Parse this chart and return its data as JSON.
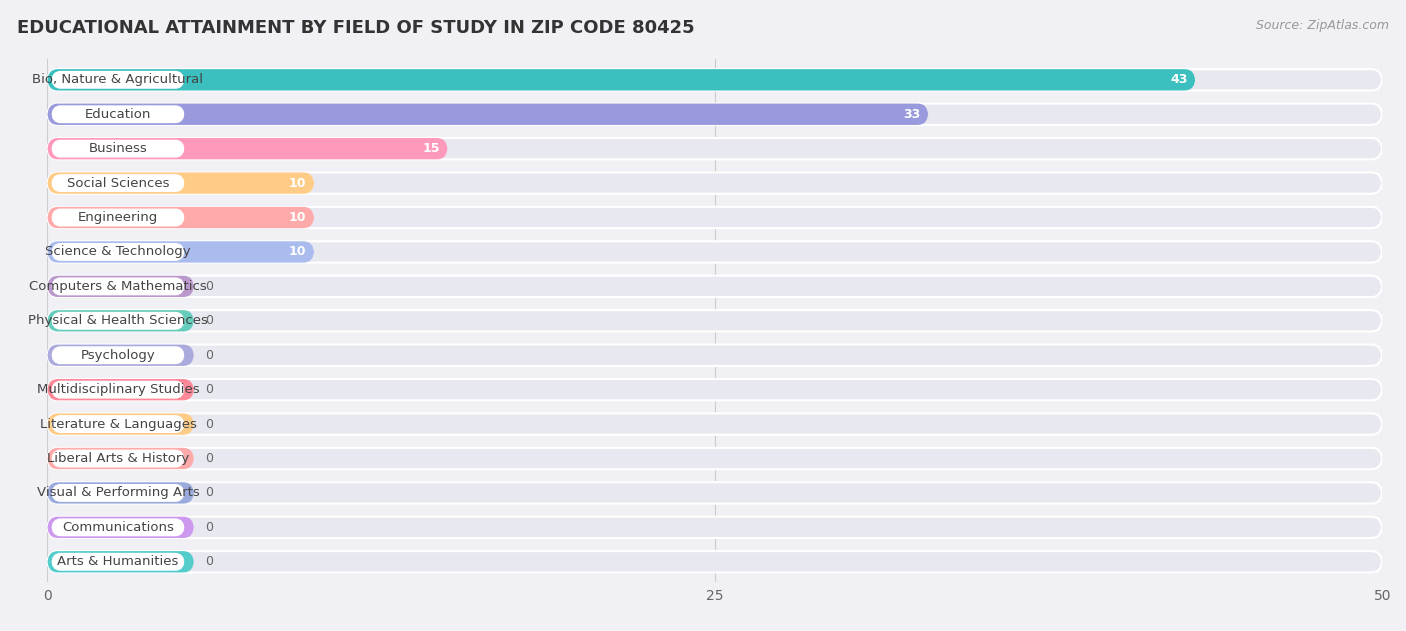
{
  "title": "EDUCATIONAL ATTAINMENT BY FIELD OF STUDY IN ZIP CODE 80425",
  "source": "Source: ZipAtlas.com",
  "categories": [
    "Bio, Nature & Agricultural",
    "Education",
    "Business",
    "Social Sciences",
    "Engineering",
    "Science & Technology",
    "Computers & Mathematics",
    "Physical & Health Sciences",
    "Psychology",
    "Multidisciplinary Studies",
    "Literature & Languages",
    "Liberal Arts & History",
    "Visual & Performing Arts",
    "Communications",
    "Arts & Humanities"
  ],
  "values": [
    43,
    33,
    15,
    10,
    10,
    10,
    0,
    0,
    0,
    0,
    0,
    0,
    0,
    0,
    0
  ],
  "bar_colors": [
    "#3bbfbf",
    "#9999dd",
    "#ff99bb",
    "#ffcc88",
    "#ffaaaa",
    "#aabbee",
    "#bb99cc",
    "#66ccbb",
    "#aaaadd",
    "#ff8899",
    "#ffcc88",
    "#ffaaaa",
    "#99aadd",
    "#cc99ee",
    "#55cccc"
  ],
  "xlim_max": 50,
  "xticks": [
    0,
    25,
    50
  ],
  "background_color": "#f0f0f5",
  "row_bg_color": "#e8e8f0",
  "bar_bg_color": "#f5f5fa",
  "title_fontsize": 13,
  "source_fontsize": 9,
  "label_fontsize": 9.5,
  "value_fontsize": 9
}
